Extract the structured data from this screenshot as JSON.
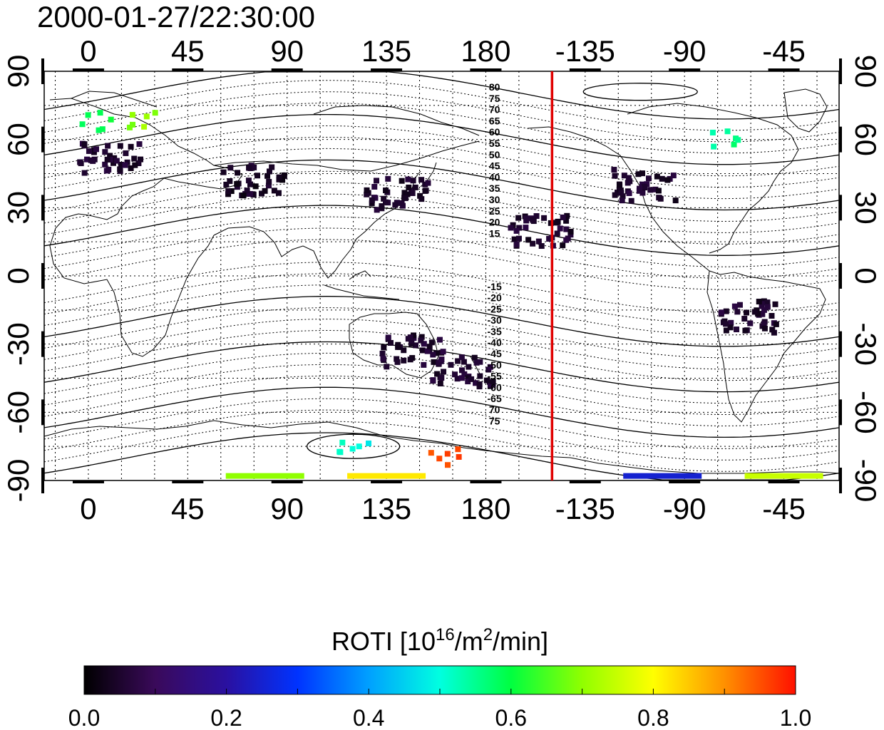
{
  "title": "2000-01-27/22:30:00",
  "map": {
    "lon_ticks": [
      "0",
      "45",
      "90",
      "135",
      "180",
      "-135",
      "-90",
      "-45"
    ],
    "lon_tick_values": [
      0,
      45,
      90,
      135,
      180,
      225,
      270,
      315
    ],
    "lon_range": [
      -20,
      340
    ],
    "lat_ticks": [
      "90",
      "60",
      "30",
      "0",
      "-30",
      "-60",
      "-90"
    ],
    "lat_ticks_right": [
      "90",
      "60",
      "30",
      "0",
      "-30",
      "-60",
      "-90"
    ],
    "lat_tick_values": [
      90,
      60,
      30,
      0,
      -30,
      -60,
      -90
    ],
    "lat_range": [
      -90,
      90
    ],
    "grid": "dotted every 15 deg",
    "terminator_line": {
      "lon": 210,
      "color": "#e00000"
    },
    "maglat_labels_north": [
      "80",
      "75",
      "70",
      "65",
      "60",
      "55",
      "50",
      "45",
      "40",
      "35",
      "30",
      "25",
      "20",
      "15"
    ],
    "maglat_labels_south": [
      "-15",
      "-20",
      "-25",
      "-30",
      "-35",
      "-40",
      "-45",
      "-50",
      "-55",
      "-60",
      "-65",
      "70",
      "75"
    ],
    "maglat_label_lon": 182
  },
  "chart_data": {
    "type": "heatmap",
    "title": "2000-01-27/22:30:00",
    "xlabel": "",
    "ylabel": "",
    "xlim": [
      -20,
      340
    ],
    "ylim": [
      -90,
      90
    ],
    "value_name": "ROTI",
    "value_range": [
      0.0,
      1.0
    ],
    "observation_clusters": [
      {
        "lon": 10,
        "lat": 52,
        "roti": 0.05
      },
      {
        "lon": 75,
        "lat": 42,
        "roti": 0.04
      },
      {
        "lon": 140,
        "lat": 36,
        "roti": 0.05
      },
      {
        "lon": 252,
        "lat": 40,
        "roti": 0.05
      },
      {
        "lon": 298,
        "lat": -18,
        "roti": 0.05
      },
      {
        "lon": 170,
        "lat": -42,
        "roti": 0.05
      },
      {
        "lon": 147,
        "lat": -33,
        "roti": 0.05
      },
      {
        "lon": 205,
        "lat": 20,
        "roti": 0.05
      },
      {
        "lon": 5,
        "lat": 68,
        "roti": 0.6
      },
      {
        "lon": 25,
        "lat": 68,
        "roti": 0.7
      },
      {
        "lon": 290,
        "lat": 60,
        "roti": 0.55
      },
      {
        "lon": 120,
        "lat": -75,
        "roti": 0.5
      },
      {
        "lon": 163,
        "lat": -80,
        "roti": 0.95
      },
      {
        "lon": 80,
        "lat": -88,
        "roti": 0.7
      },
      {
        "lon": 135,
        "lat": -88,
        "roti": 0.82
      },
      {
        "lon": 315,
        "lat": -88,
        "roti": 0.75
      },
      {
        "lon": 260,
        "lat": -88,
        "roti": 0.25
      }
    ]
  },
  "colorbar": {
    "label_prefix": "ROTI  [10",
    "label_sup1": "16",
    "label_mid": "/m",
    "label_sup2": "2",
    "label_suffix": "/min]",
    "ticks": [
      "0.0",
      "0.2",
      "0.4",
      "0.6",
      "0.8",
      "1.0"
    ],
    "tick_values": [
      0.0,
      0.2,
      0.4,
      0.6,
      0.8,
      1.0
    ],
    "colors": [
      "#000000",
      "#3a0a5a",
      "#2a10a0",
      "#0033ff",
      "#00a0ff",
      "#00ffe0",
      "#00ff40",
      "#90ff00",
      "#ffff00",
      "#ff9000",
      "#ff1000"
    ]
  }
}
